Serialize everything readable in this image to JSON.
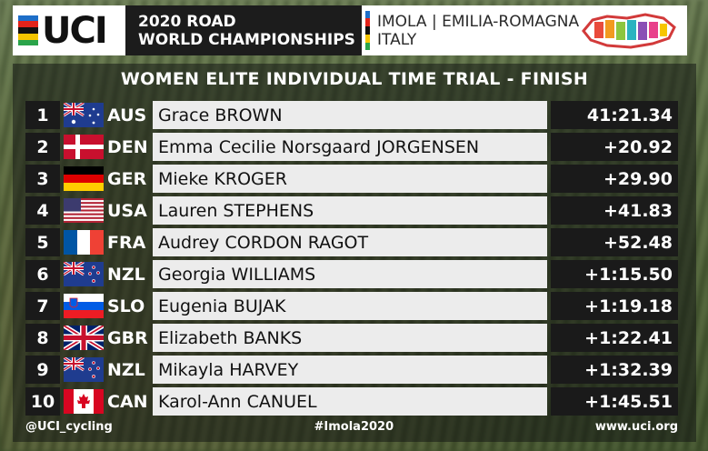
{
  "header": {
    "logo_text": "UCI",
    "event_line1": "2020 ROAD",
    "event_line2": "WORLD CHAMPIONSHIPS",
    "venue_line1": "IMOLA | EMILIA-ROMAGNA",
    "venue_line2": "ITALY"
  },
  "race_title": "WOMEN ELITE INDIVIDUAL TIME TRIAL - FINISH",
  "results": [
    {
      "rank": "1",
      "flag": "australia-flag-icon",
      "nation": "AUS",
      "name": "Grace BROWN",
      "time": "41:21.34"
    },
    {
      "rank": "2",
      "flag": "denmark-flag-icon",
      "nation": "DEN",
      "name": "Emma Cecilie Norsgaard JORGENSEN",
      "time": "+20.92"
    },
    {
      "rank": "3",
      "flag": "germany-flag-icon",
      "nation": "GER",
      "name": "Mieke KROGER",
      "time": "+29.90"
    },
    {
      "rank": "4",
      "flag": "usa-flag-icon",
      "nation": "USA",
      "name": "Lauren STEPHENS",
      "time": "+41.83"
    },
    {
      "rank": "5",
      "flag": "france-flag-icon",
      "nation": "FRA",
      "name": "Audrey CORDON RAGOT",
      "time": "+52.48"
    },
    {
      "rank": "6",
      "flag": "new-zealand-flag-icon",
      "nation": "NZL",
      "name": "Georgia WILLIAMS",
      "time": "+1:15.50"
    },
    {
      "rank": "7",
      "flag": "slovenia-flag-icon",
      "nation": "SLO",
      "name": "Eugenia BUJAK",
      "time": "+1:19.18"
    },
    {
      "rank": "8",
      "flag": "uk-flag-icon",
      "nation": "GBR",
      "name": "Elizabeth BANKS",
      "time": "+1:22.41"
    },
    {
      "rank": "9",
      "flag": "new-zealand-flag-icon",
      "nation": "NZL",
      "name": "Mikayla HARVEY",
      "time": "+1:32.39"
    },
    {
      "rank": "10",
      "flag": "canada-flag-icon",
      "nation": "CAN",
      "name": "Karol-Ann CANUEL",
      "time": "+1:45.51"
    }
  ],
  "footer": {
    "twitter": "@UCI_cycling",
    "hashtag": "#Imola2020",
    "website": "www.uci.org"
  },
  "colors": {
    "uci_stripes": [
      "#1e6ec8",
      "#e2231a",
      "#111111",
      "#f5c400",
      "#2aa44a"
    ]
  }
}
